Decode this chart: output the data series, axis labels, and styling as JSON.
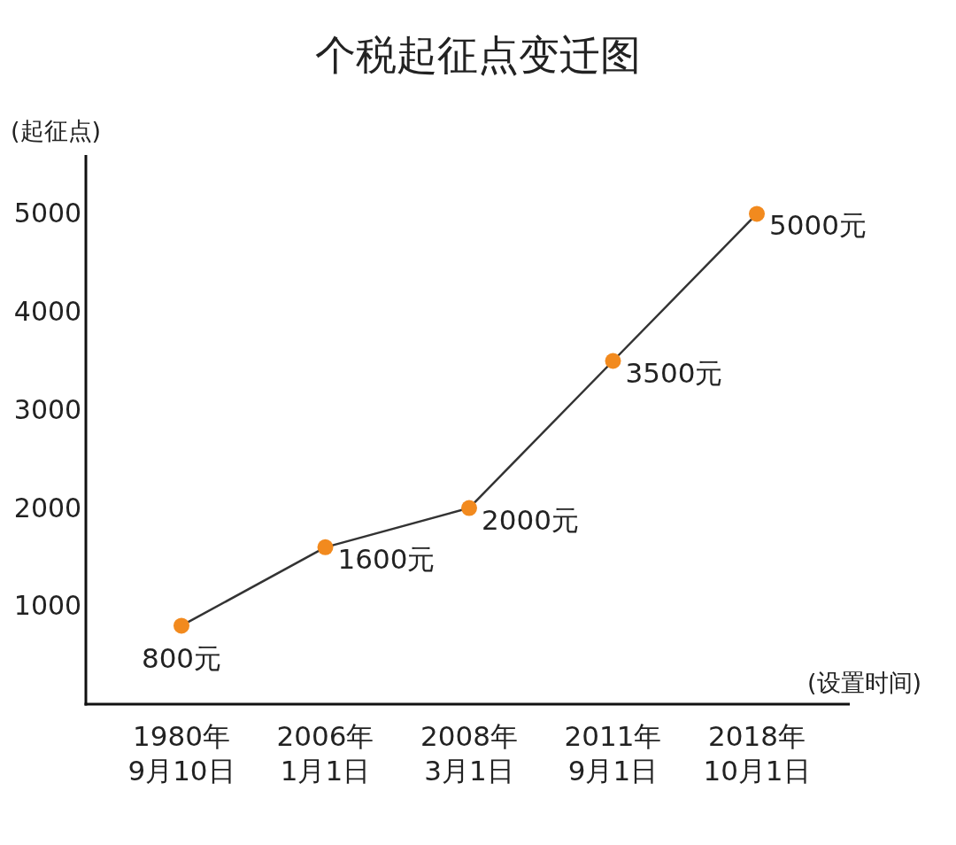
{
  "chart_data": {
    "type": "line",
    "title": "个税起征点变迁图",
    "ylabel": "(起征点)",
    "xlabel": "(设置时间)",
    "categories": [
      "1980年\n9月10日",
      "2006年\n1月1日",
      "2008年\n3月1日",
      "2011年\n9月1日",
      "2018年\n10月1日"
    ],
    "series": [
      {
        "color": "#f28a1e",
        "values": [
          800,
          1600,
          2000,
          3500,
          5000
        ],
        "value_labels": [
          "800元",
          "1600元",
          "2000元",
          "3500元",
          "5000元"
        ]
      }
    ],
    "ylim": [
      0,
      5600
    ],
    "yticks": [
      1000,
      2000,
      3000,
      4000,
      5000
    ],
    "marker": "circle",
    "line_style": "solid"
  }
}
